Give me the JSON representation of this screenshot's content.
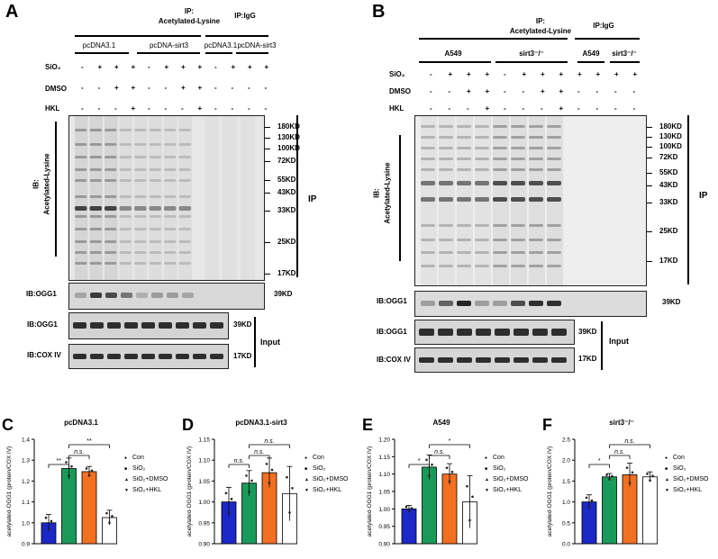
{
  "panels": {
    "A": {
      "letter": "A",
      "ip_title": "IP:",
      "ip_title2": "Acetylated-Lysine",
      "igg": "IP:IgG",
      "groups": [
        "pcDNA3.1",
        "pcDNA-sirt3",
        "pcDNA3.1",
        "pcDNA-sirt3"
      ],
      "sio2_label": "SiO₂",
      "dmso_label": "DMSO",
      "hkl_label": "HKL",
      "sio2_row": [
        "-",
        "+",
        "+",
        "+",
        "-",
        "+",
        "+",
        "+",
        "-",
        "+",
        "+",
        "+"
      ],
      "dmso_row": [
        "-",
        "-",
        "+",
        "+",
        "-",
        "-",
        "+",
        "+",
        "-",
        "-",
        "-",
        "-"
      ],
      "hkl_row": [
        "-",
        "-",
        "-",
        "+",
        "-",
        "-",
        "-",
        "+",
        "-",
        "-",
        "-",
        "-"
      ],
      "ib_main": "IB:",
      "ib_main2": "Acetylated-Lysine",
      "ip_side": "IP",
      "markers": [
        "180KD",
        "130KD",
        "100KD",
        "72KD",
        "55KD",
        "43KD",
        "33KD",
        "25KD",
        "17KD"
      ],
      "ib_ogg1": "IB:OGG1",
      "ogg1_kd": "39KD",
      "ib_ogg1_input": "IB:OGG1",
      "ib_cox": "IB:COX IV",
      "input_kd1": "39KD",
      "input_kd2": "17KD",
      "input_label": "Input"
    },
    "B": {
      "letter": "B",
      "ip_title": "IP:",
      "ip_title2": "Acetylated-Lysine",
      "igg": "IP:IgG",
      "groups": [
        "A549",
        "sirt3⁻/⁻",
        "A549",
        "sirt3⁻/⁻"
      ],
      "sio2_label": "SiO₂",
      "dmso_label": "DMSO",
      "hkl_label": "HKL",
      "sio2_row": [
        "-",
        "+",
        "+",
        "+",
        "-",
        "+",
        "+",
        "+",
        "+",
        "+",
        "+",
        "+"
      ],
      "dmso_row": [
        "-",
        "-",
        "+",
        "+",
        "-",
        "-",
        "+",
        "+",
        "-",
        "-",
        "-",
        "-"
      ],
      "hkl_row": [
        "-",
        "-",
        "-",
        "+",
        "-",
        "-",
        "-",
        "+",
        "-",
        "-",
        "-",
        "-"
      ],
      "ib_main": "IB:",
      "ib_main2": "Acetylated-Lysine",
      "ip_side": "IP",
      "markers": [
        "180KD",
        "130KD",
        "100KD",
        "72KD",
        "55KD",
        "43KD",
        "33KD",
        "25KD",
        "17KD"
      ],
      "ib_ogg1": "IB:OGG1",
      "ogg1_kd": "39KD",
      "ib_ogg1_input": "IB:OGG1",
      "ib_cox": "IB:COX IV",
      "input_kd1": "39KD",
      "input_kd2": "17KD",
      "input_label": "Input"
    }
  },
  "chart_data": [
    {
      "letter": "C",
      "type": "bar",
      "title": "pcDNA3.1",
      "ylabel": "acetylated-OGG1 (protein/COX IV)",
      "categories": [
        "Con",
        "SiO₂",
        "SiO₂+DMSO",
        "SiO₂+HKL"
      ],
      "values": [
        1.0,
        1.26,
        1.245,
        1.025
      ],
      "errors": [
        0.04,
        0.05,
        0.025,
        0.035
      ],
      "ylim": [
        0.9,
        1.4
      ],
      "yticks": [
        "0.9",
        "1.0",
        "1.1",
        "1.2",
        "1.3",
        "1.4"
      ],
      "colors": [
        "#1c28c8",
        "#1a9a5a",
        "#f37021",
        "#ffffff"
      ],
      "legend": [
        "Con",
        "SiO₂",
        "SiO₂+DMSO",
        "SiO₂+HKL"
      ],
      "brackets": [
        {
          "from": 0,
          "to": 1,
          "label": "**"
        },
        {
          "from": 1,
          "to": 2,
          "label": "n.s."
        },
        {
          "from": 1,
          "to": 3,
          "label": "**"
        }
      ]
    },
    {
      "letter": "D",
      "type": "bar",
      "title": "pcDNA3.1-sirt3",
      "ylabel": "acetylated-OGG1 (protein/COX IV)",
      "categories": [
        "Con",
        "SiO₂",
        "SiO₂+DMSO",
        "SiO₂+HKL"
      ],
      "values": [
        1.0,
        1.045,
        1.07,
        1.02
      ],
      "errors": [
        0.035,
        0.03,
        0.035,
        0.065
      ],
      "ylim": [
        0.9,
        1.15
      ],
      "yticks": [
        "0.90",
        "0.95",
        "1.00",
        "1.05",
        "1.10",
        "1.15"
      ],
      "colors": [
        "#1c28c8",
        "#1a9a5a",
        "#f37021",
        "#ffffff"
      ],
      "legend": [
        "Con",
        "SiO₂",
        "SiO₂+DMSO",
        "SiO₂+HKL"
      ],
      "brackets": [
        {
          "from": 0,
          "to": 1,
          "label": "n.s."
        },
        {
          "from": 1,
          "to": 2,
          "label": "n.s."
        },
        {
          "from": 1,
          "to": 3,
          "label": "n.s."
        }
      ]
    },
    {
      "letter": "E",
      "type": "bar",
      "title": "A549",
      "ylabel": "acetylated-OGG1 (protein/COX IV)",
      "categories": [
        "Con",
        "SiO₂",
        "SiO₂+DMSO",
        "SiO₂+HKL"
      ],
      "values": [
        1.0,
        1.12,
        1.1,
        1.02
      ],
      "errors": [
        0.01,
        0.035,
        0.03,
        0.075
      ],
      "ylim": [
        0.9,
        1.2
      ],
      "yticks": [
        "0.90",
        "0.95",
        "1.00",
        "1.05",
        "1.10",
        "1.15",
        "1.20"
      ],
      "colors": [
        "#1c28c8",
        "#1a9a5a",
        "#f37021",
        "#ffffff"
      ],
      "legend": [
        "Con",
        "SiO₂",
        "SiO₂+DMSO",
        "SiO₂+HKL"
      ],
      "brackets": [
        {
          "from": 0,
          "to": 1,
          "label": "*"
        },
        {
          "from": 1,
          "to": 2,
          "label": "n.s."
        },
        {
          "from": 1,
          "to": 3,
          "label": "*"
        }
      ]
    },
    {
      "letter": "F",
      "type": "bar",
      "title": "sirt3⁻/⁻",
      "ylabel": "acetylated-OGG1 (protein/COX IV)",
      "categories": [
        "Con",
        "SiO₂",
        "SiO₂+DMSO",
        "SiO₂+HKL"
      ],
      "values": [
        1.0,
        1.6,
        1.65,
        1.6
      ],
      "errors": [
        0.17,
        0.08,
        0.28,
        0.12
      ],
      "ylim": [
        0.0,
        2.5
      ],
      "yticks": [
        "0.0",
        "0.5",
        "1.0",
        "1.5",
        "2.0",
        "2.5"
      ],
      "colors": [
        "#1c28c8",
        "#1a9a5a",
        "#f37021",
        "#ffffff"
      ],
      "legend": [
        "Con",
        "SiO₂",
        "SiO₂+DMSO",
        "SiO₂+HKL"
      ],
      "brackets": [
        {
          "from": 0,
          "to": 1,
          "label": "*"
        },
        {
          "from": 1,
          "to": 2,
          "label": "n.s."
        },
        {
          "from": 1,
          "to": 3,
          "label": "n.s."
        }
      ]
    }
  ]
}
